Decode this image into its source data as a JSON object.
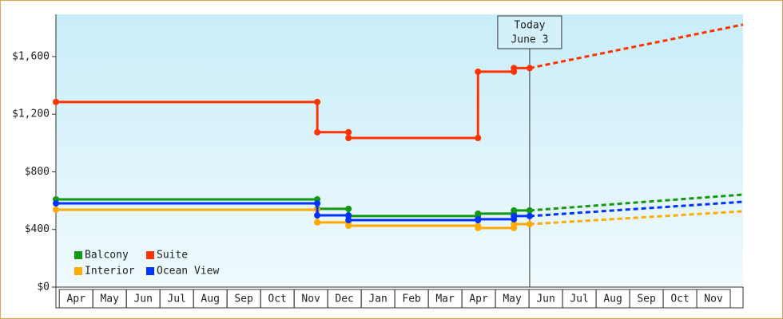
{
  "chart_data": {
    "type": "step-line",
    "xlim": [
      -0.1,
      20.38
    ],
    "ylim": [
      0,
      1893
    ],
    "xticks": [
      {
        "value": 0.5,
        "label": "Apr"
      },
      {
        "value": 1.5,
        "label": "May"
      },
      {
        "value": 2.5,
        "label": "Jun"
      },
      {
        "value": 3.5,
        "label": "Jul"
      },
      {
        "value": 4.5,
        "label": "Aug"
      },
      {
        "value": 5.5,
        "label": "Sep"
      },
      {
        "value": 6.5,
        "label": "Oct"
      },
      {
        "value": 7.5,
        "label": "Nov"
      },
      {
        "value": 8.5,
        "label": "Dec"
      },
      {
        "value": 9.5,
        "label": "Jan"
      },
      {
        "value": 10.5,
        "label": "Feb"
      },
      {
        "value": 11.5,
        "label": "Mar"
      },
      {
        "value": 12.5,
        "label": "Apr"
      },
      {
        "value": 13.5,
        "label": "May"
      },
      {
        "value": 14.5,
        "label": "Jun"
      },
      {
        "value": 15.5,
        "label": "Jul"
      },
      {
        "value": 16.5,
        "label": "Aug"
      },
      {
        "value": 17.5,
        "label": "Sep"
      },
      {
        "value": 18.5,
        "label": "Oct"
      },
      {
        "value": 19.5,
        "label": "Nov"
      }
    ],
    "yticks": [
      {
        "value": 0,
        "label": "$0"
      },
      {
        "value": 400,
        "label": "$400"
      },
      {
        "value": 800,
        "label": "$800"
      },
      {
        "value": 1200,
        "label": "$1,200"
      },
      {
        "value": 1600,
        "label": "$1,600"
      }
    ],
    "annotation": {
      "x": 14.02,
      "lines": [
        "Today",
        "June 3"
      ]
    },
    "legend": "lower-left",
    "series": [
      {
        "name": "Balcony",
        "color": "#119911",
        "x": [
          -0.1,
          7.69,
          7.69,
          8.62,
          8.62,
          12.48,
          12.48,
          13.55,
          13.55,
          14.02
        ],
        "values": [
          609,
          609,
          543,
          543,
          493,
          493,
          510,
          510,
          532,
          532
        ],
        "forecast": {
          "x": [
            14.02,
            20.38
          ],
          "values": [
            532,
            642
          ]
        }
      },
      {
        "name": "Suite",
        "color": "#ff3300",
        "x": [
          -0.1,
          7.69,
          7.69,
          8.62,
          8.62,
          12.48,
          12.48,
          13.55,
          13.55,
          14.02
        ],
        "values": [
          1285,
          1285,
          1075,
          1075,
          1035,
          1035,
          1495,
          1495,
          1520,
          1520
        ],
        "forecast": {
          "x": [
            14.02,
            20.38
          ],
          "values": [
            1520,
            1822
          ]
        }
      },
      {
        "name": "Interior",
        "color": "#ffaa00",
        "x": [
          -0.1,
          7.69,
          7.69,
          8.62,
          8.62,
          12.48,
          12.48,
          13.55,
          13.55,
          14.02
        ],
        "values": [
          537,
          537,
          449,
          449,
          426,
          426,
          410,
          410,
          437,
          437
        ],
        "forecast": {
          "x": [
            14.02,
            20.38
          ],
          "values": [
            437,
            526
          ]
        }
      },
      {
        "name": "Ocean View",
        "color": "#0033ff",
        "x": [
          -0.1,
          7.69,
          7.69,
          8.62,
          8.62,
          12.48,
          12.48,
          13.55,
          13.55,
          14.02
        ],
        "values": [
          581,
          581,
          498,
          498,
          465,
          465,
          471,
          471,
          493,
          493
        ],
        "forecast": {
          "x": [
            14.02,
            20.38
          ],
          "values": [
            493,
            592
          ]
        }
      }
    ]
  }
}
